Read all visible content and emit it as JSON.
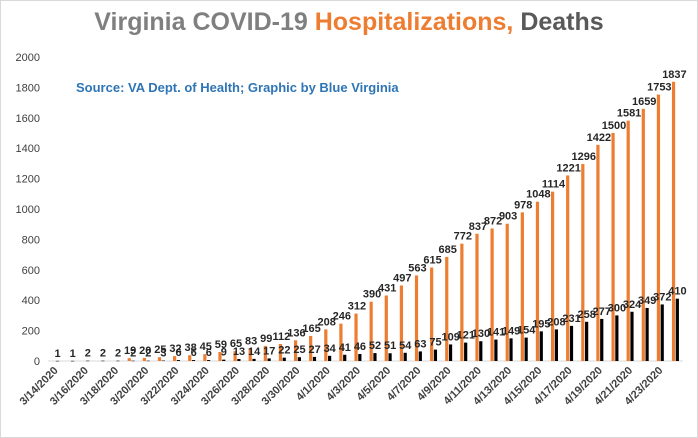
{
  "title": {
    "part1": "Virginia COVID-19 ",
    "part2": "Hospitalizations,",
    "part3": " Deaths",
    "colors": {
      "part1": "#7f7f7f",
      "part2": "#ed7d31",
      "part3": "#595959"
    }
  },
  "source": "Source: VA Dept. of Health; Graphic by Blue Virginia",
  "chart_data": {
    "type": "bar",
    "title": "Virginia COVID-19 Hospitalizations, Deaths",
    "categories": [
      "3/14/2020",
      "3/15/2020",
      "3/16/2020",
      "3/17/2020",
      "3/18/2020",
      "3/19/2020",
      "3/20/2020",
      "3/21/2020",
      "3/22/2020",
      "3/23/2020",
      "3/24/2020",
      "3/25/2020",
      "3/26/2020",
      "3/27/2020",
      "3/28/2020",
      "3/29/2020",
      "3/30/2020",
      "3/31/2020",
      "4/1/2020",
      "4/2/2020",
      "4/3/2020",
      "4/4/2020",
      "4/5/2020",
      "4/6/2020",
      "4/7/2020",
      "4/8/2020",
      "4/9/2020",
      "4/10/2020",
      "4/11/2020",
      "4/12/2020",
      "4/13/2020",
      "4/14/2020",
      "4/15/2020",
      "4/16/2020",
      "4/17/2020",
      "4/18/2020",
      "4/19/2020",
      "4/20/2020",
      "4/21/2020",
      "4/22/2020",
      "4/23/2020",
      "4/24/2020"
    ],
    "tick_labels_shown": [
      "3/14/2020",
      "3/16/2020",
      "3/18/2020",
      "3/20/2020",
      "3/22/2020",
      "3/24/2020",
      "3/26/2020",
      "3/28/2020",
      "3/30/2020",
      "4/1/2020",
      "4/3/2020",
      "4/5/2020",
      "4/7/2020",
      "4/9/2020",
      "4/11/2020",
      "4/13/2020",
      "4/15/2020",
      "4/17/2020",
      "4/19/2020",
      "4/21/2020",
      "4/23/2020"
    ],
    "series": [
      {
        "key": "hospitalizations",
        "color": "#ed7d31",
        "values": [
          null,
          null,
          null,
          null,
          null,
          19,
          20,
          25,
          32,
          38,
          45,
          59,
          65,
          83,
          99,
          112,
          136,
          165,
          208,
          246,
          312,
          390,
          431,
          497,
          563,
          615,
          685,
          772,
          837,
          872,
          903,
          978,
          1048,
          1114,
          1221,
          1296,
          1422,
          1500,
          1581,
          1659,
          1753,
          1837
        ]
      },
      {
        "key": "deaths",
        "color": "#000000",
        "values": [
          1,
          1,
          2,
          2,
          2,
          2,
          2,
          3,
          6,
          6,
          6,
          9,
          13,
          14,
          17,
          22,
          25,
          27,
          34,
          41,
          46,
          52,
          51,
          54,
          63,
          75,
          109,
          121,
          130,
          141,
          149,
          154,
          195,
          208,
          231,
          258,
          277,
          300,
          324,
          349,
          372,
          410
        ]
      }
    ],
    "ylim": [
      0,
      2000
    ],
    "yticks": [
      0,
      200,
      400,
      600,
      800,
      1000,
      1200,
      1400,
      1600,
      1800,
      2000
    ],
    "xlabel": "",
    "ylabel": "",
    "grid": false,
    "legend": "none"
  }
}
